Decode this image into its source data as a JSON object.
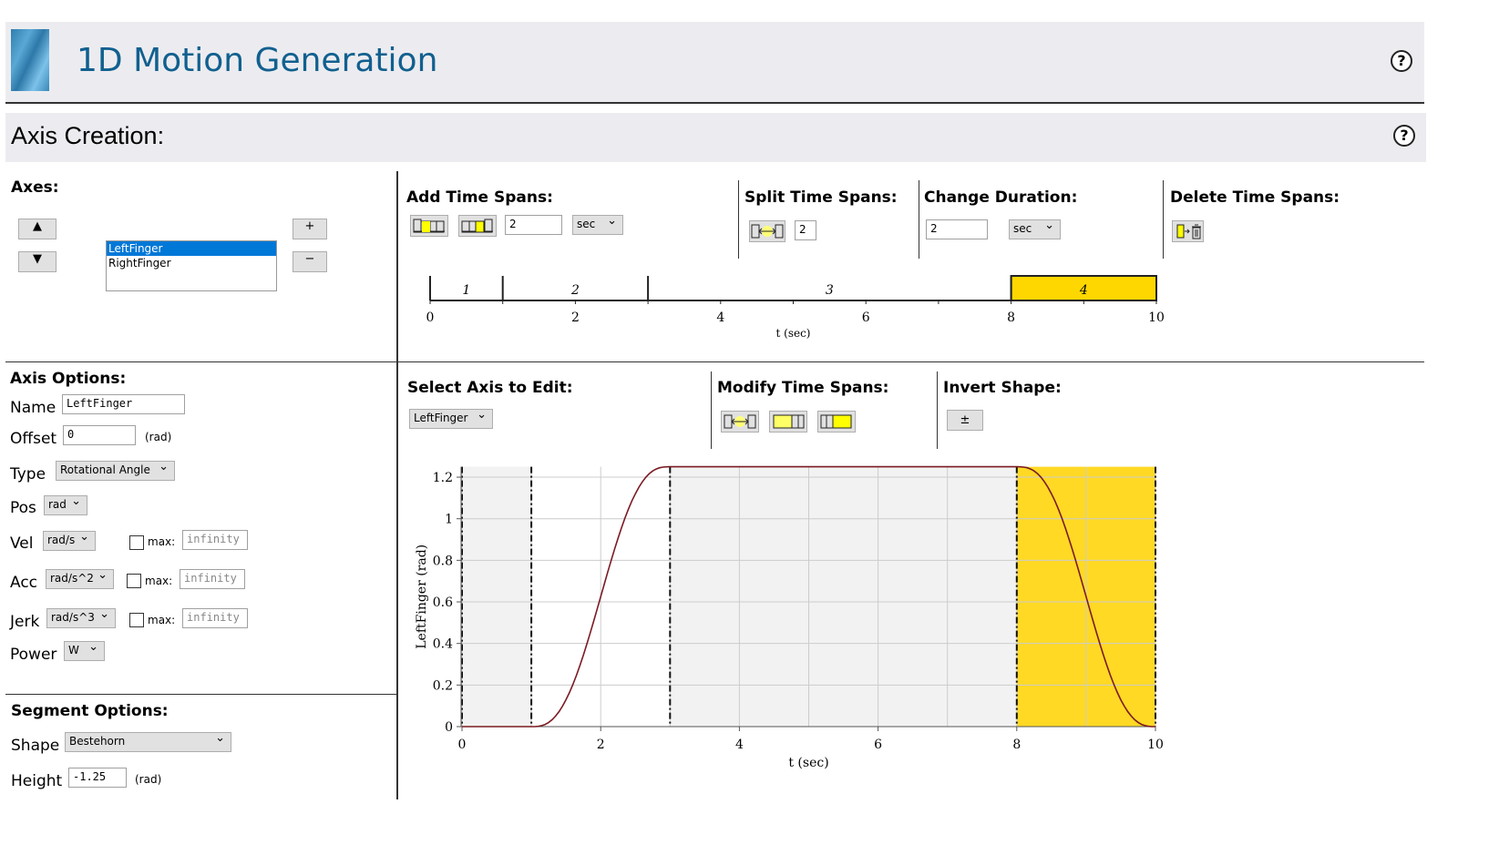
{
  "header": {
    "title": "1D Motion Generation",
    "help": "?"
  },
  "section": {
    "title": "Axis Creation:",
    "help": "?"
  },
  "axes": {
    "heading": "Axes:",
    "up": "▲",
    "down": "▼",
    "add": "+",
    "remove": "−",
    "items": [
      "LeftFinger",
      "RightFinger"
    ],
    "selected": "LeftFinger"
  },
  "add_spans": {
    "heading": "Add Time Spans:",
    "value": "2",
    "unit": "sec"
  },
  "split_spans": {
    "heading": "Split Time Spans:",
    "value": "2"
  },
  "change_duration": {
    "heading": "Change Duration:",
    "value": "2",
    "unit": "sec"
  },
  "delete_spans": {
    "heading": "Delete Time Spans:"
  },
  "timeline": {
    "spans": [
      {
        "label": "1",
        "start": 0,
        "end": 1
      },
      {
        "label": "2",
        "start": 1,
        "end": 3
      },
      {
        "label": "3",
        "start": 3,
        "end": 8
      },
      {
        "label": "4",
        "start": 8,
        "end": 10,
        "selected": true
      }
    ],
    "ticks": [
      "0",
      "2",
      "4",
      "6",
      "8",
      "10"
    ],
    "xlabel": "t (sec)",
    "highlight_color": "#ffd700"
  },
  "axis_options": {
    "heading": "Axis Options:",
    "name_label": "Name",
    "name": "LeftFinger",
    "offset_label": "Offset",
    "offset": "0",
    "offset_unit": "(rad)",
    "type_label": "Type",
    "type": "Rotational Angle",
    "pos_label": "Pos",
    "pos_unit": "rad",
    "vel_label": "Vel",
    "vel_unit": "rad/s",
    "acc_label": "Acc",
    "acc_unit": "rad/s^2",
    "jerk_label": "Jerk",
    "jerk_unit": "rad/s^3",
    "max_label": "max:",
    "max_placeholder": "infinity",
    "power_label": "Power",
    "power_unit": "W"
  },
  "segment_options": {
    "heading": "Segment Options:",
    "shape_label": "Shape",
    "shape": "Bestehorn",
    "height_label": "Height",
    "height": "-1.25",
    "height_unit": "(rad)"
  },
  "select_axis": {
    "heading": "Select Axis to Edit:",
    "value": "LeftFinger"
  },
  "modify_spans": {
    "heading": "Modify Time Spans:"
  },
  "invert_shape": {
    "heading": "Invert Shape:",
    "button": "±"
  },
  "chart_data": {
    "type": "line",
    "xlabel": "t (sec)",
    "ylabel": "LeftFinger (rad)",
    "xlim": [
      0,
      10
    ],
    "ylim": [
      0,
      1.25
    ],
    "xticks": [
      "0",
      "2",
      "4",
      "6",
      "8",
      "10"
    ],
    "yticks": [
      "0",
      "0.2",
      "0.4",
      "0.6",
      "0.8",
      "1",
      "1.2"
    ],
    "grid": true,
    "line_color": "#7b1a22",
    "span_boundaries": [
      0,
      1,
      3,
      8,
      10
    ],
    "selected_span": [
      8,
      10
    ],
    "selected_color": "#ffd924",
    "segments": [
      {
        "t0": 0,
        "t1": 1,
        "y0": 0,
        "y1": 0
      },
      {
        "t0": 1,
        "t1": 3,
        "y0": 0,
        "y1": 1.25
      },
      {
        "t0": 3,
        "t1": 8,
        "y0": 1.25,
        "y1": 1.25
      },
      {
        "t0": 8,
        "t1": 10,
        "y0": 1.25,
        "y1": 0
      }
    ]
  }
}
